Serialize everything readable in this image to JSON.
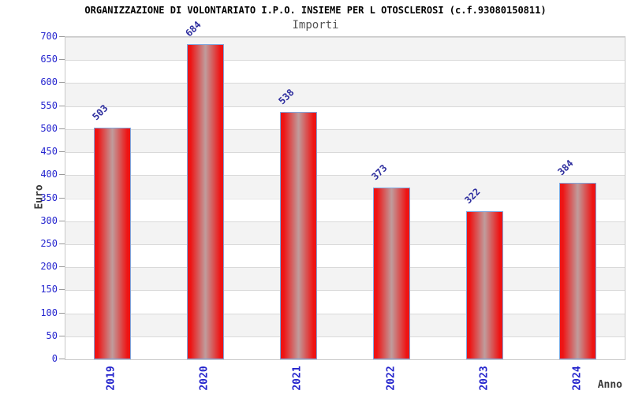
{
  "chart_data": {
    "type": "bar",
    "title": "ORGANIZZAZIONE DI VOLONTARIATO I.P.O. INSIEME PER L OTOSCLEROSI (c.f.93080150811)",
    "subtitle": "Importi",
    "categories": [
      "2019",
      "2020",
      "2021",
      "2022",
      "2023",
      "2024"
    ],
    "values": [
      503,
      684,
      538,
      373,
      322,
      384
    ],
    "xlabel": "Anno",
    "ylabel": "Euro",
    "ylim": [
      0,
      700
    ],
    "ytick_step": 50,
    "grid": true,
    "legend": "none",
    "band_alternating": true,
    "value_label_rotation_deg": -45,
    "xtick_rotation_deg": -90,
    "colors": {
      "title": "#000000",
      "subtitle": "#555555",
      "axis_title": "#3a3a3a",
      "ytick_label": "#2626cf",
      "xtick_label": "#2323cc",
      "value_label": "#2d2d9e",
      "tick_mark": "#999999",
      "gridline": "#d9d9d9",
      "band": "#f3f3f3",
      "plot_border": "#c8c8c8",
      "bar_edge": "#ee1414",
      "bar_mid": "#c09c9c",
      "bar_border": "#7fa8e0"
    }
  }
}
